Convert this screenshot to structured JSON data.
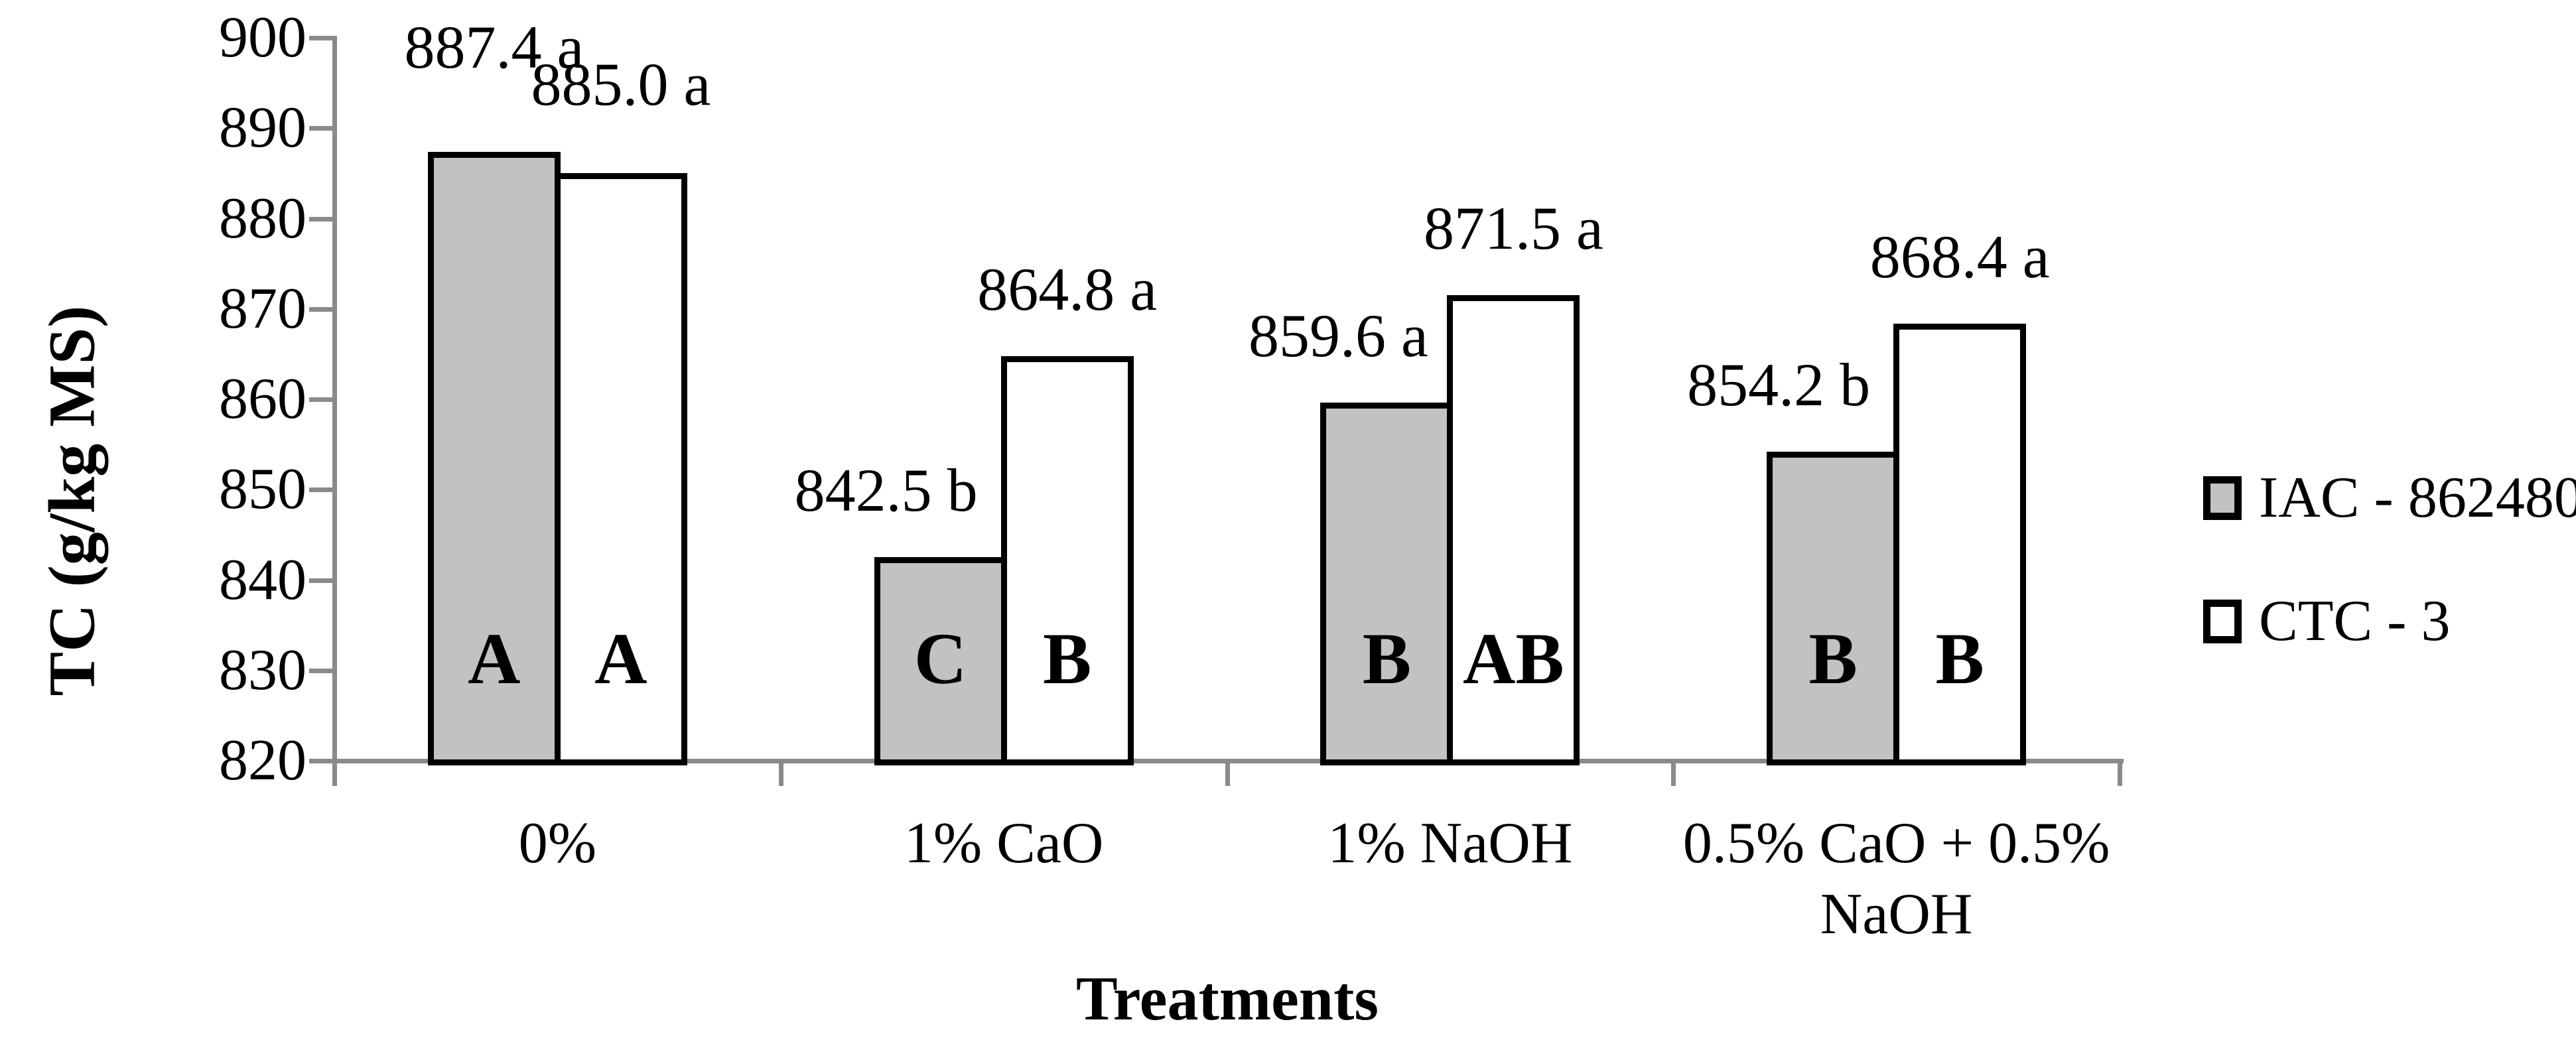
{
  "chart_data": {
    "type": "bar",
    "title": "",
    "xlabel": "Treatments",
    "ylabel": "TC (g/kg MS)",
    "ylim": [
      820,
      900
    ],
    "ytick_step": 10,
    "yticks": [
      900,
      890,
      880,
      870,
      860,
      850,
      840,
      830,
      820
    ],
    "categories": [
      "0%",
      "1% CaO",
      "1% NaOH",
      "0.5% CaO + 0.5% NaOH"
    ],
    "series": [
      {
        "name": "IAC - 862480",
        "fill": "#C2C2C2",
        "values": [
          887.4,
          842.5,
          859.6,
          854.2
        ],
        "data_labels": [
          "887.4 a",
          "842.5 b",
          "859.6 a",
          "854.2 b"
        ],
        "bar_letters": [
          "A",
          "C",
          "B",
          "B"
        ]
      },
      {
        "name": "CTC - 3",
        "fill": "#FFFFFF",
        "values": [
          885.0,
          864.8,
          871.5,
          868.4
        ],
        "data_labels": [
          "885.0 a",
          "864.8 a",
          "871.5 a",
          "868.4 a"
        ],
        "bar_letters": [
          "A",
          "B",
          "AB",
          "B"
        ]
      }
    ],
    "legend_position": "right",
    "grid": false
  },
  "colors": {
    "background": "#FFFFFF",
    "axis": "#8A8A8A",
    "bar_border": "#000000",
    "gray_fill": "#C2C2C2",
    "white_fill": "#FFFFFF",
    "text": "#000000"
  }
}
